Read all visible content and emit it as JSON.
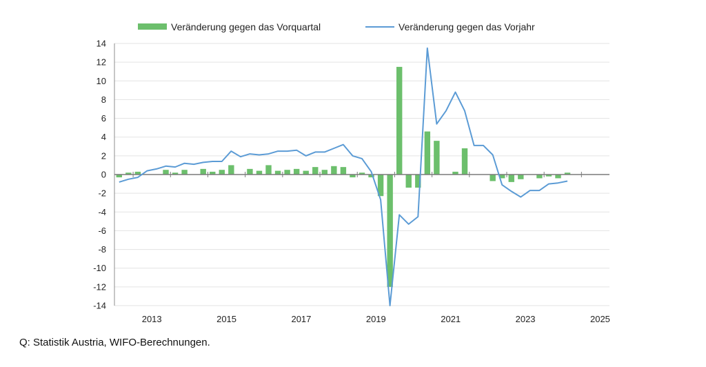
{
  "chart_data": {
    "type": "bar",
    "title": "",
    "xlabel": "",
    "ylabel": "",
    "ylim": [
      -14,
      14
    ],
    "yticks": [
      -14,
      -12,
      -10,
      -8,
      -6,
      -4,
      -2,
      0,
      2,
      4,
      6,
      8,
      10,
      12,
      14
    ],
    "xrange": [
      2012.5,
      2025.75
    ],
    "xtick_labels": [
      "2013",
      "2015",
      "2017",
      "2019",
      "2021",
      "2023",
      "2025"
    ],
    "grid": "horizontal",
    "legend_position": "top",
    "quarters": [
      "2012Q3",
      "2012Q4",
      "2013Q1",
      "2013Q2",
      "2013Q3",
      "2013Q4",
      "2014Q1",
      "2014Q2",
      "2014Q3",
      "2014Q4",
      "2015Q1",
      "2015Q2",
      "2015Q3",
      "2015Q4",
      "2016Q1",
      "2016Q2",
      "2016Q3",
      "2016Q4",
      "2017Q1",
      "2017Q2",
      "2017Q3",
      "2017Q4",
      "2018Q1",
      "2018Q2",
      "2018Q3",
      "2018Q4",
      "2019Q1",
      "2019Q2",
      "2019Q3",
      "2019Q4",
      "2020Q1",
      "2020Q2",
      "2020Q3",
      "2020Q4",
      "2021Q1",
      "2021Q2",
      "2021Q3",
      "2021Q4",
      "2022Q1",
      "2022Q2",
      "2022Q3",
      "2022Q4",
      "2023Q1",
      "2023Q2",
      "2023Q3",
      "2023Q4",
      "2024Q1",
      "2024Q2",
      "2024Q3"
    ],
    "series": [
      {
        "name": "Veränderung gegen das Vorquartal",
        "kind": "bar",
        "color": "#6cbf6c",
        "values": [
          -0.3,
          0.2,
          0.3,
          0.0,
          0.0,
          0.5,
          0.2,
          0.5,
          0.0,
          0.6,
          0.3,
          0.5,
          1.0,
          0.0,
          0.6,
          0.4,
          1.0,
          0.4,
          0.5,
          0.6,
          0.4,
          0.8,
          0.5,
          0.9,
          0.8,
          -0.3,
          0.2,
          -0.3,
          -2.3,
          -12.0,
          11.5,
          -1.4,
          -1.4,
          4.6,
          3.6,
          0.0,
          0.3,
          2.8,
          0.0,
          0.0,
          -0.7,
          -0.4,
          -0.8,
          -0.5,
          0.0,
          -0.4,
          -0.2,
          -0.4,
          0.2
        ]
      },
      {
        "name": "Veränderung gegen das Vorjahr",
        "kind": "line",
        "color": "#5b9bd5",
        "values": [
          -0.8,
          -0.5,
          -0.3,
          0.4,
          0.6,
          0.9,
          0.8,
          1.2,
          1.1,
          1.3,
          1.4,
          1.4,
          2.5,
          1.9,
          2.2,
          2.1,
          2.2,
          2.5,
          2.5,
          2.6,
          2.0,
          2.4,
          2.4,
          2.8,
          3.2,
          2.0,
          1.7,
          0.3,
          -2.7,
          -14.0,
          -4.3,
          -5.3,
          -4.5,
          13.5,
          5.4,
          6.8,
          8.8,
          6.8,
          3.1,
          3.1,
          2.1,
          -1.1,
          -1.8,
          -2.4,
          -1.7,
          -1.7,
          -1.0,
          -0.9,
          -0.7
        ]
      }
    ],
    "source": "Q: Statistik Austria, WIFO-Berechnungen."
  }
}
